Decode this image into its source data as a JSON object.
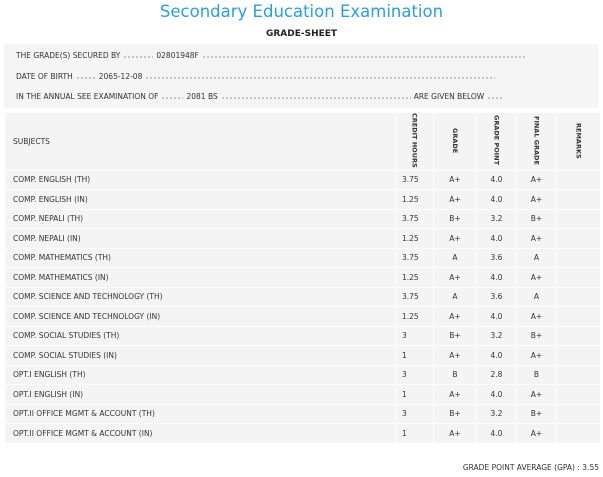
{
  "header": {
    "title": "Secondary Education Examination",
    "subtitle": "GRADE-SHEET"
  },
  "info": [
    {
      "label": "THE GRADE(S) SECURED BY",
      "value": "02801948F"
    },
    {
      "label": "DATE OF BIRTH",
      "value": "2065-12-08"
    },
    {
      "label": "IN THE ANNUAL SEE EXAMINATION OF",
      "value": "2081 BS",
      "tail": "ARE GIVEN BELOW"
    }
  ],
  "table": {
    "columns": [
      "SUBJECTS",
      "CREDIT HOURS",
      "GRADE",
      "GRADE POINT",
      "FINAL GRADE",
      "REMARKS"
    ],
    "rows": [
      [
        "COMP. ENGLISH (TH)",
        "3.75",
        "A+",
        "4.0",
        "A+"
      ],
      [
        "COMP. ENGLISH (IN)",
        "1.25",
        "A+",
        "4.0",
        "A+"
      ],
      [
        "COMP. NEPALI (TH)",
        "3.75",
        "B+",
        "3.2",
        "B+"
      ],
      [
        "COMP. NEPALI (IN)",
        "1.25",
        "A+",
        "4.0",
        "A+"
      ],
      [
        "COMP. MATHEMATICS (TH)",
        "3.75",
        "A",
        "3.6",
        "A"
      ],
      [
        "COMP. MATHEMATICS (IN)",
        "1.25",
        "A+",
        "4.0",
        "A+"
      ],
      [
        "COMP. SCIENCE AND TECHNOLOGY (TH)",
        "3.75",
        "A",
        "3.6",
        "A"
      ],
      [
        "COMP. SCIENCE AND TECHNOLOGY (IN)",
        "1.25",
        "A+",
        "4.0",
        "A+"
      ],
      [
        "COMP. SOCIAL STUDIES (TH)",
        "3",
        "B+",
        "3.2",
        "B+"
      ],
      [
        "COMP. SOCIAL STUDIES (IN)",
        "1",
        "A+",
        "4.0",
        "A+"
      ],
      [
        "OPT.I ENGLISH (TH)",
        "3",
        "B",
        "2.8",
        "B"
      ],
      [
        "OPT.I ENGLISH (IN)",
        "1",
        "A+",
        "4.0",
        "A+"
      ],
      [
        "OPT.II OFFICE MGMT & ACCOUNT (TH)",
        "3",
        "B+",
        "3.2",
        "B+"
      ],
      [
        "OPT.II OFFICE MGMT & ACCOUNT (IN)",
        "1",
        "A+",
        "4.0",
        "A+"
      ]
    ]
  },
  "gpa": {
    "label": "GRADE POINT AVERAGE (GPA) :",
    "value": "3.55"
  }
}
